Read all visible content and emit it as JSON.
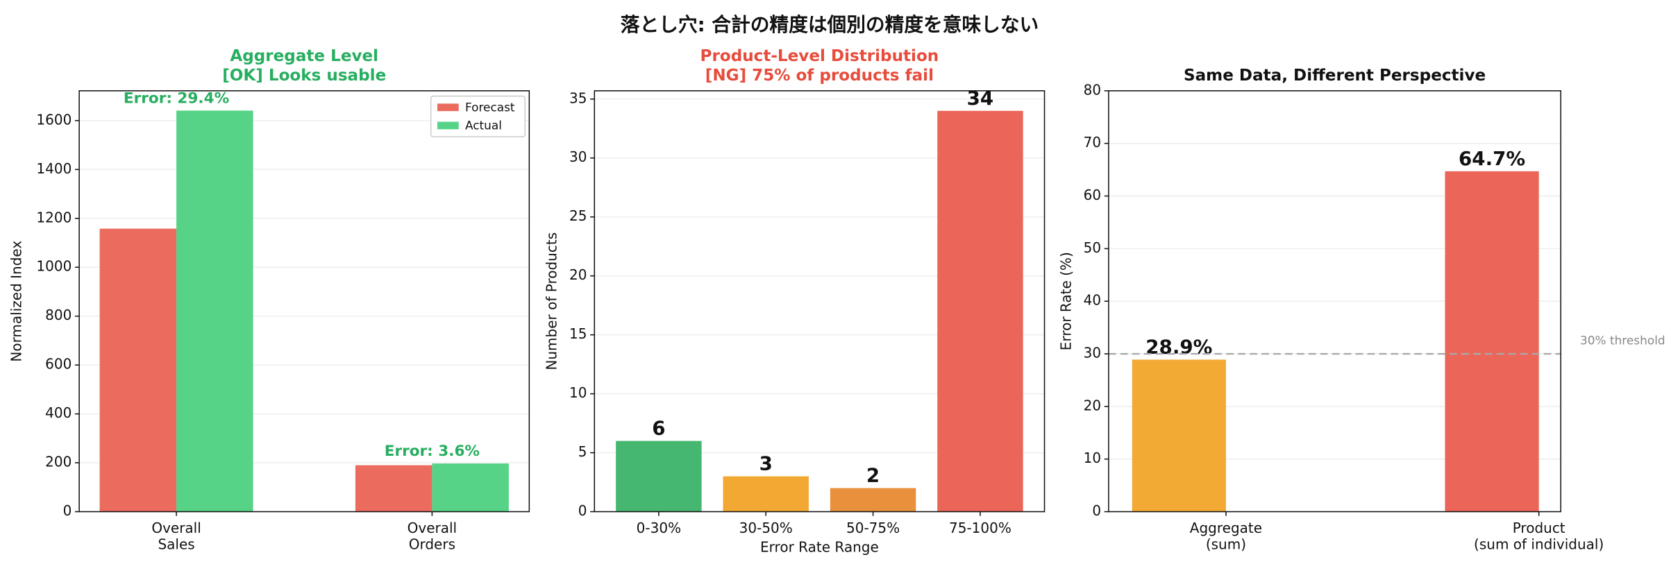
{
  "title": "落とし穴: 合計の精度は個別の精度を意味しない",
  "chart_data": [
    {
      "type": "bar",
      "title": "Aggregate Level",
      "subtitle": "[OK] Looks usable",
      "title_color": "#27ae60",
      "ylabel": "Normalized Index",
      "categories": [
        [
          "Overall",
          "Sales"
        ],
        [
          "Overall",
          "Orders"
        ]
      ],
      "series": [
        {
          "name": "Forecast",
          "color": "#eb6b5e",
          "values": [
            1158,
            190
          ]
        },
        {
          "name": "Actual",
          "color": "#56d386",
          "values": [
            1641,
            197
          ]
        }
      ],
      "annotations": [
        "Error: 29.4%",
        "Error: 3.6%"
      ],
      "annotation_color": "#27ae60",
      "ylim": [
        0,
        1722
      ],
      "yticks": [
        0,
        200,
        400,
        600,
        800,
        1000,
        1200,
        1400,
        1600
      ],
      "grid": true,
      "legend": "upper right"
    },
    {
      "type": "bar",
      "title": "Product-Level Distribution",
      "subtitle": "[NG] 75% of products fail",
      "title_color": "#e74c3c",
      "xlabel": "Error Rate Range",
      "ylabel": "Number of Products",
      "categories": [
        [
          "0-30%"
        ],
        [
          "30-50%"
        ],
        [
          "50-75%"
        ],
        [
          "75-100%"
        ]
      ],
      "values": [
        6,
        3,
        2,
        34
      ],
      "colors": [
        "#45b771",
        "#f3a833",
        "#e8903c",
        "#eb6658"
      ],
      "ylim": [
        0,
        35.7
      ],
      "yticks": [
        0,
        5,
        10,
        15,
        20,
        25,
        30,
        35
      ],
      "grid": true
    },
    {
      "type": "bar",
      "title": "Same Data, Different Perspective",
      "title_color": "#111111",
      "ylabel": "Error Rate (%)",
      "categories": [
        [
          "Aggregate",
          "(sum)"
        ],
        [
          "Product",
          "(sum of individual)"
        ]
      ],
      "values": [
        28.9,
        64.7
      ],
      "value_labels": [
        "28.9%",
        "64.7%"
      ],
      "colors": [
        "#f3aa35",
        "#eb6658"
      ],
      "threshold": {
        "value": 30,
        "label": "30% threshold"
      },
      "ylim": [
        0,
        80
      ],
      "yticks": [
        0,
        10,
        20,
        30,
        40,
        50,
        60,
        70,
        80
      ],
      "grid": true
    }
  ]
}
